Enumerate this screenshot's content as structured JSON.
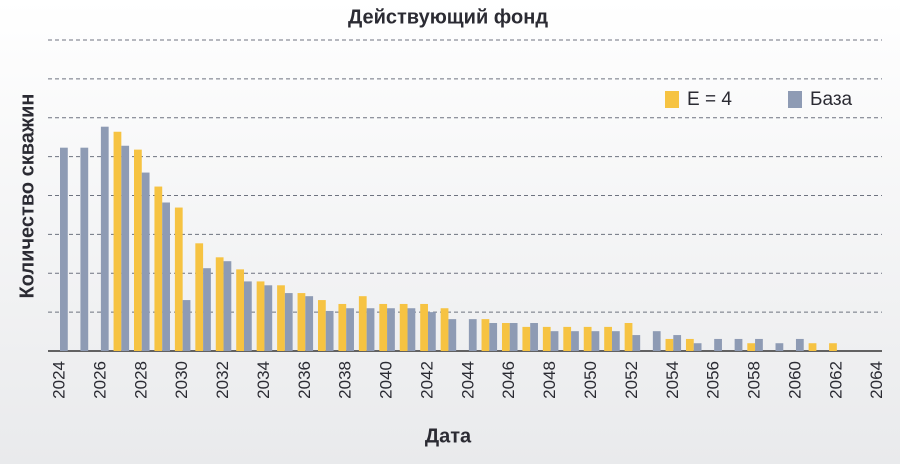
{
  "chart_data": {
    "type": "bar",
    "title": "Действующий фонд",
    "xlabel": "Дата",
    "ylabel": "Количество скважин",
    "categories": [
      "2024",
      null,
      "2026",
      null,
      "2028",
      null,
      "2030",
      null,
      "2032",
      null,
      "2034",
      null,
      "2036",
      null,
      "2038",
      null,
      "2040",
      null,
      "2042",
      null,
      "2044",
      null,
      "2046",
      null,
      "2048",
      null,
      "2050",
      null,
      "2052",
      null,
      "2054",
      null,
      "2056",
      null,
      "2058",
      null,
      "2060",
      null,
      "2062",
      null,
      "2064"
    ],
    "series": [
      {
        "name": "E = 4",
        "color": "#f6c342",
        "values": [
          null,
          null,
          null,
          5.64,
          5.18,
          4.23,
          3.69,
          2.77,
          2.41,
          2.1,
          1.79,
          1.69,
          1.49,
          1.31,
          1.21,
          1.41,
          1.21,
          1.21,
          1.21,
          1.1,
          null,
          0.82,
          0.72,
          0.62,
          0.62,
          0.62,
          0.62,
          0.62,
          0.72,
          null,
          0.31,
          0.31,
          null,
          null,
          0.2,
          null,
          null,
          0.2,
          0.2,
          null,
          null
        ]
      },
      {
        "name": "База",
        "color": "#8e9bb4",
        "values": [
          5.23,
          5.23,
          5.77,
          5.28,
          4.59,
          3.82,
          1.31,
          2.13,
          2.31,
          1.79,
          1.69,
          1.49,
          1.41,
          1.03,
          1.1,
          1.1,
          1.1,
          1.1,
          1.0,
          0.82,
          0.82,
          0.72,
          0.72,
          0.72,
          0.51,
          0.51,
          0.51,
          0.51,
          0.41,
          0.51,
          0.41,
          0.2,
          0.31,
          0.31,
          0.31,
          0.2,
          0.31,
          null,
          null,
          null,
          null
        ]
      }
    ],
    "ylim": [
      0,
      8
    ],
    "yticks": [
      1,
      2,
      3,
      4,
      5,
      6,
      7,
      8
    ],
    "grid": true,
    "legend": "upper right"
  }
}
